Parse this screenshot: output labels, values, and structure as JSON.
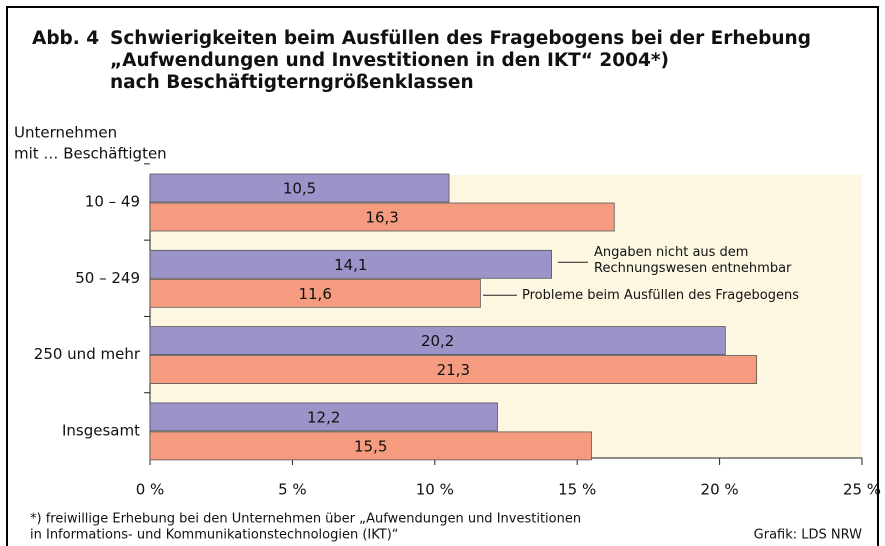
{
  "chart_data": {
    "type": "bar",
    "orientation": "horizontal",
    "title_number": "Abb. 4",
    "title": [
      "Schwierigkeiten beim Ausfüllen des Fragebogens bei der Erhebung",
      "„Aufwendungen und Investitionen in den IKT“ 2004*)",
      "nach Beschäftigterngrößenklassen"
    ],
    "y_label": [
      "Unternehmen",
      "mit … Beschäftigten"
    ],
    "categories": [
      "10 – 49",
      "50 – 249",
      "250 und mehr",
      "Insgesamt"
    ],
    "series": [
      {
        "name": "Angaben nicht aus dem Rechnungswesen entnehmbar",
        "color": "#9c94c8",
        "values": [
          10.5,
          14.1,
          20.2,
          12.2
        ],
        "value_labels": [
          "10,5",
          "14,1",
          "20,2",
          "12,2"
        ]
      },
      {
        "name": "Probleme beim Ausfüllen des Fragebogens",
        "color": "#f59c80",
        "values": [
          16.3,
          11.6,
          21.3,
          15.5
        ],
        "value_labels": [
          "16,3",
          "11,6",
          "21,3",
          "15,5"
        ]
      }
    ],
    "xlim": [
      0,
      25
    ],
    "xticks": [
      {
        "value": 0,
        "label": "0 %"
      },
      {
        "value": 5,
        "label": "5 %"
      },
      {
        "value": 10,
        "label": "10 %"
      },
      {
        "value": 15,
        "label": "15 %"
      },
      {
        "value": 20,
        "label": "20 %"
      },
      {
        "value": 25,
        "label": "25 %"
      }
    ],
    "footnote": [
      "*) freiwillige Erhebung bei den Unternehmen über „Aufwendungen und Investitionen",
      "in Informations- und Kommunikationstechnologien (IKT)“"
    ],
    "source": "Grafik: LDS NRW"
  }
}
